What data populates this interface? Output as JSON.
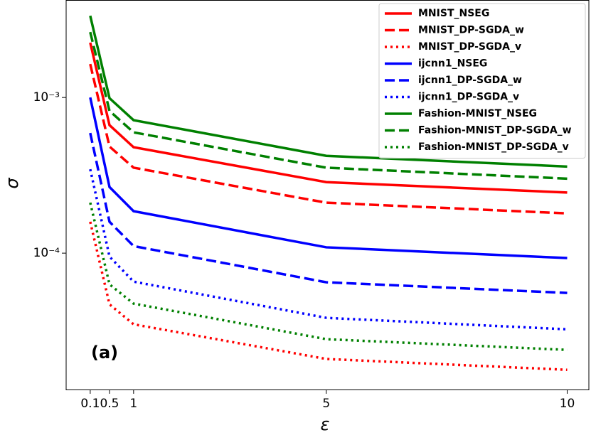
{
  "chart_data": {
    "type": "line",
    "x_label": "ε",
    "y_label": "σ",
    "annotation": "(a)",
    "x": [
      0.1,
      0.5,
      1,
      5,
      10
    ],
    "xlim": [
      -0.4,
      10.45
    ],
    "xticks": [
      0.1,
      0.5,
      1,
      5,
      10
    ],
    "ylim": [
      1.33e-05,
      0.00423
    ],
    "yscale": "log",
    "yticks": [
      {
        "value": 0.001,
        "label": "10⁻³"
      },
      {
        "value": 0.0001,
        "label": "10⁻⁴"
      }
    ],
    "legend": "upper right",
    "series": [
      {
        "name": "MNIST_NSEG",
        "color": "#ff0000",
        "linestyle": "solid",
        "values": [
          0.00225,
          0.000664,
          0.000479,
          0.000286,
          0.000245
        ]
      },
      {
        "name": "MNIST_DP-SGDA_w",
        "color": "#ff0000",
        "linestyle": "dashed",
        "values": [
          0.00164,
          0.000484,
          0.000354,
          0.000211,
          0.00018
        ]
      },
      {
        "name": "MNIST_DP-SGDA_v",
        "color": "#ff0000",
        "linestyle": "dotted",
        "values": [
          0.000159,
          4.69e-05,
          3.49e-05,
          2.09e-05,
          1.78e-05
        ]
      },
      {
        "name": "ijcnn1_NSEG",
        "color": "#0000ff",
        "linestyle": "solid",
        "values": [
          0.001,
          0.000266,
          0.000186,
          0.000109,
          9.3e-05
        ]
      },
      {
        "name": "ijcnn1_DP-SGDA_w",
        "color": "#0000ff",
        "linestyle": "dashed",
        "values": [
          0.000591,
          0.000159,
          0.000111,
          6.5e-05,
          5.55e-05
        ]
      },
      {
        "name": "ijcnn1_DP-SGDA_v",
        "color": "#0000ff",
        "linestyle": "dotted",
        "values": [
          0.000346,
          9.5e-05,
          6.56e-05,
          3.84e-05,
          3.24e-05
        ]
      },
      {
        "name": "Fashion-MNIST_NSEG",
        "color": "#008000",
        "linestyle": "solid",
        "values": [
          0.00335,
          0.00099,
          0.000715,
          0.000422,
          0.00036
        ]
      },
      {
        "name": "Fashion-MNIST_DP-SGDA_w",
        "color": "#008000",
        "linestyle": "dashed",
        "values": [
          0.00263,
          0.00082,
          0.000597,
          0.000354,
          0.000301
        ]
      },
      {
        "name": "Fashion-MNIST_DP-SGDA_v",
        "color": "#008000",
        "linestyle": "dotted",
        "values": [
          0.000211,
          6.3e-05,
          4.74e-05,
          2.8e-05,
          2.39e-05
        ]
      }
    ]
  }
}
